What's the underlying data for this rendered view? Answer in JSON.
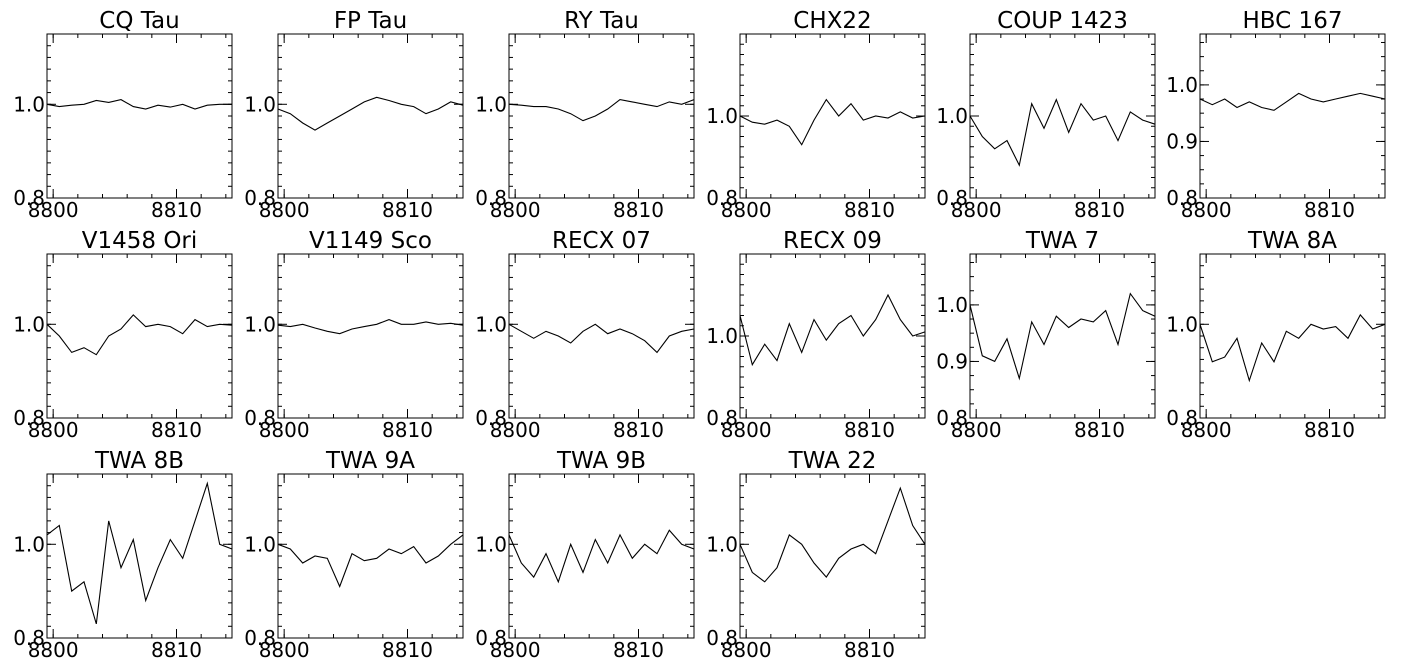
{
  "chart_data": [
    {
      "type": "line",
      "title": "CQ Tau",
      "xlim": [
        8799.5,
        8814.5
      ],
      "ylim": [
        0.8,
        1.15
      ],
      "xticks": [
        8800,
        8810
      ],
      "yticks": [
        0.8,
        1.0
      ],
      "xlabels": [
        "8800",
        "8810"
      ],
      "ylabels": [
        "0.8",
        "1.0"
      ],
      "x": [
        8799.5,
        8800.5,
        8801.5,
        8802.5,
        8803.5,
        8804.5,
        8805.5,
        8806.5,
        8807.5,
        8808.5,
        8809.5,
        8810.5,
        8811.5,
        8812.5,
        8813.5,
        8814.5
      ],
      "series": [
        {
          "values": [
            1.0,
            0.995,
            0.998,
            1.0,
            1.008,
            1.004,
            1.01,
            0.995,
            0.99,
            0.998,
            0.994,
            1.0,
            0.99,
            0.998,
            1.0,
            1.0
          ]
        }
      ]
    },
    {
      "type": "line",
      "title": "FP Tau",
      "xlim": [
        8799.5,
        8814.5
      ],
      "ylim": [
        0.8,
        1.15
      ],
      "xticks": [
        8800,
        8810
      ],
      "yticks": [
        0.8,
        1.0
      ],
      "xlabels": [
        "8800",
        "8810"
      ],
      "ylabels": [
        "0.8",
        "1.0"
      ],
      "x": [
        8799.5,
        8800.5,
        8801.5,
        8802.5,
        8803.5,
        8804.5,
        8805.5,
        8806.5,
        8807.5,
        8808.5,
        8809.5,
        8810.5,
        8811.5,
        8812.5,
        8813.5,
        8814.5
      ],
      "series": [
        {
          "values": [
            0.99,
            0.98,
            0.96,
            0.945,
            0.96,
            0.975,
            0.99,
            1.005,
            1.015,
            1.008,
            1.0,
            0.995,
            0.98,
            0.99,
            1.005,
            0.998
          ]
        }
      ]
    },
    {
      "type": "line",
      "title": "RY Tau",
      "xlim": [
        8799.5,
        8814.5
      ],
      "ylim": [
        0.8,
        1.15
      ],
      "xticks": [
        8800,
        8810
      ],
      "yticks": [
        0.8,
        1.0
      ],
      "xlabels": [
        "8800",
        "8810"
      ],
      "ylabels": [
        "0.8",
        "1.0"
      ],
      "x": [
        8799.5,
        8800.5,
        8801.5,
        8802.5,
        8803.5,
        8804.5,
        8805.5,
        8806.5,
        8807.5,
        8808.5,
        8809.5,
        8810.5,
        8811.5,
        8812.5,
        8813.5,
        8814.5
      ],
      "series": [
        {
          "values": [
            1.0,
            0.998,
            0.995,
            0.995,
            0.99,
            0.98,
            0.965,
            0.975,
            0.99,
            1.01,
            1.005,
            1.0,
            0.995,
            1.005,
            1.0,
            1.01
          ]
        }
      ]
    },
    {
      "type": "line",
      "title": "CHX22",
      "xlim": [
        8799.5,
        8814.5
      ],
      "ylim": [
        0.8,
        1.2
      ],
      "xticks": [
        8800,
        8810
      ],
      "yticks": [
        0.8,
        1.0
      ],
      "xlabels": [
        "8800",
        "8810"
      ],
      "ylabels": [
        "0.8",
        "1.0"
      ],
      "x": [
        8799.5,
        8800.5,
        8801.5,
        8802.5,
        8803.5,
        8804.5,
        8805.5,
        8806.5,
        8807.5,
        8808.5,
        8809.5,
        8810.5,
        8811.5,
        8812.5,
        8813.5,
        8814.5
      ],
      "series": [
        {
          "values": [
            1.0,
            0.985,
            0.98,
            0.99,
            0.975,
            0.93,
            0.99,
            1.04,
            1.0,
            1.03,
            0.99,
            1.0,
            0.995,
            1.01,
            0.995,
            1.0
          ]
        }
      ]
    },
    {
      "type": "line",
      "title": "COUP 1423",
      "xlim": [
        8799.5,
        8814.5
      ],
      "ylim": [
        0.8,
        1.2
      ],
      "xticks": [
        8800,
        8810
      ],
      "yticks": [
        0.8,
        1.0
      ],
      "xlabels": [
        "8800",
        "8810"
      ],
      "ylabels": [
        "0.8",
        "1.0"
      ],
      "x": [
        8799.5,
        8800.5,
        8801.5,
        8802.5,
        8803.5,
        8804.5,
        8805.5,
        8806.5,
        8807.5,
        8808.5,
        8809.5,
        8810.5,
        8811.5,
        8812.5,
        8813.5,
        8814.5
      ],
      "series": [
        {
          "values": [
            1.0,
            0.95,
            0.92,
            0.94,
            0.88,
            1.03,
            0.97,
            1.04,
            0.96,
            1.03,
            0.99,
            1.0,
            0.94,
            1.01,
            0.99,
            0.98
          ]
        }
      ]
    },
    {
      "type": "line",
      "title": "HBC 167",
      "xlim": [
        8799.5,
        8814.5
      ],
      "ylim": [
        0.8,
        1.09
      ],
      "xticks": [
        8800,
        8810
      ],
      "yticks": [
        0.8,
        0.9,
        1.0
      ],
      "xlabels": [
        "8800",
        "8810"
      ],
      "ylabels": [
        "0.8",
        "0.9",
        "1.0"
      ],
      "x": [
        8799.5,
        8800.5,
        8801.5,
        8802.5,
        8803.5,
        8804.5,
        8805.5,
        8806.5,
        8807.5,
        8808.5,
        8809.5,
        8810.5,
        8811.5,
        8812.5,
        8813.5,
        8814.5
      ],
      "series": [
        {
          "values": [
            0.975,
            0.965,
            0.975,
            0.96,
            0.97,
            0.96,
            0.955,
            0.97,
            0.985,
            0.975,
            0.97,
            0.975,
            0.98,
            0.985,
            0.98,
            0.975
          ]
        }
      ]
    },
    {
      "type": "line",
      "title": "V1458 Ori",
      "xlim": [
        8799.5,
        8814.5
      ],
      "ylim": [
        0.8,
        1.15
      ],
      "xticks": [
        8800,
        8810
      ],
      "yticks": [
        0.8,
        1.0
      ],
      "xlabels": [
        "8800",
        "8810"
      ],
      "ylabels": [
        "0.8",
        "1.0"
      ],
      "x": [
        8799.5,
        8800.5,
        8801.5,
        8802.5,
        8803.5,
        8804.5,
        8805.5,
        8806.5,
        8807.5,
        8808.5,
        8809.5,
        8810.5,
        8811.5,
        8812.5,
        8813.5,
        8814.5
      ],
      "series": [
        {
          "values": [
            1.0,
            0.975,
            0.94,
            0.95,
            0.935,
            0.975,
            0.99,
            1.02,
            0.995,
            1.0,
            0.995,
            0.98,
            1.01,
            0.995,
            1.0,
            0.998
          ]
        }
      ]
    },
    {
      "type": "line",
      "title": "V1149 Sco",
      "xlim": [
        8799.5,
        8814.5
      ],
      "ylim": [
        0.8,
        1.15
      ],
      "xticks": [
        8800,
        8810
      ],
      "yticks": [
        0.8,
        1.0
      ],
      "xlabels": [
        "8800",
        "8810"
      ],
      "ylabels": [
        "0.8",
        "1.0"
      ],
      "x": [
        8799.5,
        8800.5,
        8801.5,
        8802.5,
        8803.5,
        8804.5,
        8805.5,
        8806.5,
        8807.5,
        8808.5,
        8809.5,
        8810.5,
        8811.5,
        8812.5,
        8813.5,
        8814.5
      ],
      "series": [
        {
          "values": [
            0.998,
            0.995,
            1.0,
            0.992,
            0.985,
            0.98,
            0.99,
            0.995,
            1.0,
            1.01,
            1.0,
            1.0,
            1.005,
            1.0,
            1.002,
            0.998
          ]
        }
      ]
    },
    {
      "type": "line",
      "title": "RECX 07",
      "xlim": [
        8799.5,
        8814.5
      ],
      "ylim": [
        0.8,
        1.15
      ],
      "xticks": [
        8800,
        8810
      ],
      "yticks": [
        0.8,
        1.0
      ],
      "xlabels": [
        "8800",
        "8810"
      ],
      "ylabels": [
        "0.8",
        "1.0"
      ],
      "x": [
        8799.5,
        8800.5,
        8801.5,
        8802.5,
        8803.5,
        8804.5,
        8805.5,
        8806.5,
        8807.5,
        8808.5,
        8809.5,
        8810.5,
        8811.5,
        8812.5,
        8813.5,
        8814.5
      ],
      "series": [
        {
          "values": [
            1.0,
            0.985,
            0.97,
            0.985,
            0.975,
            0.96,
            0.985,
            1.0,
            0.98,
            0.99,
            0.98,
            0.965,
            0.94,
            0.975,
            0.985,
            0.99
          ]
        }
      ]
    },
    {
      "type": "line",
      "title": "RECX 09",
      "xlim": [
        8799.5,
        8814.5
      ],
      "ylim": [
        0.8,
        1.2
      ],
      "xticks": [
        8800,
        8810
      ],
      "yticks": [
        0.8,
        1.0
      ],
      "xlabels": [
        "8800",
        "8810"
      ],
      "ylabels": [
        "0.8",
        "1.0"
      ],
      "x": [
        8799.5,
        8800.5,
        8801.5,
        8802.5,
        8803.5,
        8804.5,
        8805.5,
        8806.5,
        8807.5,
        8808.5,
        8809.5,
        8810.5,
        8811.5,
        8812.5,
        8813.5,
        8814.5
      ],
      "series": [
        {
          "values": [
            1.05,
            0.93,
            0.98,
            0.94,
            1.03,
            0.96,
            1.04,
            0.99,
            1.03,
            1.05,
            1.0,
            1.04,
            1.1,
            1.04,
            1.0,
            1.01
          ]
        }
      ]
    },
    {
      "type": "line",
      "title": "TWA 7",
      "xlim": [
        8799.5,
        8814.5
      ],
      "ylim": [
        0.8,
        1.09
      ],
      "xticks": [
        8800,
        8810
      ],
      "yticks": [
        0.8,
        0.9,
        1.0
      ],
      "xlabels": [
        "8800",
        "8810"
      ],
      "ylabels": [
        "0.8",
        "0.9",
        "1.0"
      ],
      "x": [
        8799.5,
        8800.5,
        8801.5,
        8802.5,
        8803.5,
        8804.5,
        8805.5,
        8806.5,
        8807.5,
        8808.5,
        8809.5,
        8810.5,
        8811.5,
        8812.5,
        8813.5,
        8814.5
      ],
      "series": [
        {
          "values": [
            1.0,
            0.91,
            0.9,
            0.94,
            0.87,
            0.97,
            0.93,
            0.98,
            0.96,
            0.975,
            0.97,
            0.99,
            0.93,
            1.02,
            0.99,
            0.98
          ]
        }
      ]
    },
    {
      "type": "line",
      "title": "TWA 8A",
      "xlim": [
        8799.5,
        8814.5
      ],
      "ylim": [
        0.8,
        1.15
      ],
      "xticks": [
        8800,
        8810
      ],
      "yticks": [
        0.8,
        1.0
      ],
      "xlabels": [
        "8800",
        "8810"
      ],
      "ylabels": [
        "0.8",
        "1.0"
      ],
      "x": [
        8799.5,
        8800.5,
        8801.5,
        8802.5,
        8803.5,
        8804.5,
        8805.5,
        8806.5,
        8807.5,
        8808.5,
        8809.5,
        8810.5,
        8811.5,
        8812.5,
        8813.5,
        8814.5
      ],
      "series": [
        {
          "values": [
            1.0,
            0.92,
            0.93,
            0.97,
            0.88,
            0.96,
            0.92,
            0.985,
            0.97,
            1.0,
            0.99,
            0.995,
            0.97,
            1.02,
            0.99,
            1.0
          ]
        }
      ]
    },
    {
      "type": "line",
      "title": "TWA 8B",
      "xlim": [
        8799.5,
        8814.5
      ],
      "ylim": [
        0.8,
        1.15
      ],
      "xticks": [
        8800,
        8810
      ],
      "yticks": [
        0.8,
        1.0
      ],
      "xlabels": [
        "8800",
        "8810"
      ],
      "ylabels": [
        "0.8",
        "1.0"
      ],
      "x": [
        8799.5,
        8800.5,
        8801.5,
        8802.5,
        8803.5,
        8804.5,
        8805.5,
        8806.5,
        8807.5,
        8808.5,
        8809.5,
        8810.5,
        8811.5,
        8812.5,
        8813.5,
        8814.5
      ],
      "series": [
        {
          "values": [
            1.02,
            1.04,
            0.9,
            0.92,
            0.83,
            1.05,
            0.95,
            1.01,
            0.88,
            0.95,
            1.01,
            0.97,
            1.05,
            1.13,
            1.0,
            0.99
          ]
        }
      ]
    },
    {
      "type": "line",
      "title": "TWA 9A",
      "xlim": [
        8799.5,
        8814.5
      ],
      "ylim": [
        0.8,
        1.15
      ],
      "xticks": [
        8800,
        8810
      ],
      "yticks": [
        0.8,
        1.0
      ],
      "xlabels": [
        "8800",
        "8810"
      ],
      "ylabels": [
        "0.8",
        "1.0"
      ],
      "x": [
        8799.5,
        8800.5,
        8801.5,
        8802.5,
        8803.5,
        8804.5,
        8805.5,
        8806.5,
        8807.5,
        8808.5,
        8809.5,
        8810.5,
        8811.5,
        8812.5,
        8813.5,
        8814.5
      ],
      "series": [
        {
          "values": [
            1.0,
            0.99,
            0.96,
            0.975,
            0.97,
            0.91,
            0.98,
            0.965,
            0.97,
            0.99,
            0.98,
            0.995,
            0.96,
            0.975,
            1.0,
            1.02
          ]
        }
      ]
    },
    {
      "type": "line",
      "title": "TWA 9B",
      "xlim": [
        8799.5,
        8814.5
      ],
      "ylim": [
        0.8,
        1.15
      ],
      "xticks": [
        8800,
        8810
      ],
      "yticks": [
        0.8,
        1.0
      ],
      "xlabels": [
        "8800",
        "8810"
      ],
      "ylabels": [
        "0.8",
        "1.0"
      ],
      "x": [
        8799.5,
        8800.5,
        8801.5,
        8802.5,
        8803.5,
        8804.5,
        8805.5,
        8806.5,
        8807.5,
        8808.5,
        8809.5,
        8810.5,
        8811.5,
        8812.5,
        8813.5,
        8814.5
      ],
      "series": [
        {
          "values": [
            1.02,
            0.96,
            0.93,
            0.98,
            0.92,
            1.0,
            0.94,
            1.01,
            0.96,
            1.02,
            0.97,
            1.0,
            0.98,
            1.03,
            1.0,
            0.99
          ]
        }
      ]
    },
    {
      "type": "line",
      "title": "TWA 22",
      "xlim": [
        8799.5,
        8814.5
      ],
      "ylim": [
        0.8,
        1.15
      ],
      "xticks": [
        8800,
        8810
      ],
      "yticks": [
        0.8,
        1.0
      ],
      "xlabels": [
        "8800",
        "8810"
      ],
      "ylabels": [
        "0.8",
        "1.0"
      ],
      "x": [
        8799.5,
        8800.5,
        8801.5,
        8802.5,
        8803.5,
        8804.5,
        8805.5,
        8806.5,
        8807.5,
        8808.5,
        8809.5,
        8810.5,
        8811.5,
        8812.5,
        8813.5,
        8814.5
      ],
      "series": [
        {
          "values": [
            1.0,
            0.94,
            0.92,
            0.95,
            1.02,
            1.0,
            0.96,
            0.93,
            0.97,
            0.99,
            1.0,
            0.98,
            1.05,
            1.12,
            1.04,
            1.0
          ]
        }
      ]
    }
  ]
}
